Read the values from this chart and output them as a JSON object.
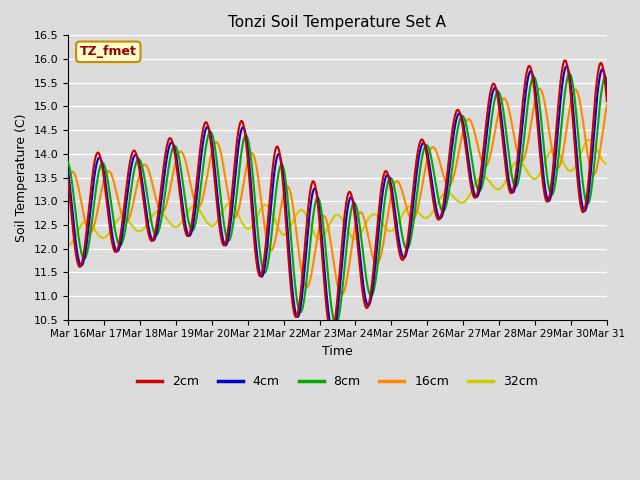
{
  "title": "Tonzi Soil Temperature Set A",
  "xlabel": "Time",
  "ylabel": "Soil Temperature (C)",
  "ylim": [
    10.5,
    16.5
  ],
  "xlim": [
    0,
    360
  ],
  "legend_label": "TZ_fmet",
  "series_labels": [
    "2cm",
    "4cm",
    "8cm",
    "16cm",
    "32cm"
  ],
  "series_colors": [
    "#cc0000",
    "#0000cc",
    "#00aa00",
    "#ff8800",
    "#cccc00"
  ],
  "line_widths": [
    1.5,
    1.5,
    1.5,
    1.5,
    1.5
  ],
  "x_tick_labels": [
    "Mar 16",
    "Mar 17",
    "Mar 18",
    "Mar 19",
    "Mar 20",
    "Mar 21",
    "Mar 22",
    "Mar 23",
    "Mar 24",
    "Mar 25",
    "Mar 26",
    "Mar 27",
    "Mar 28",
    "Mar 29",
    "Mar 30",
    "Mar 31"
  ],
  "background_color": "#dcdcdc",
  "plot_bg_color": "#dcdcdc",
  "grid_color": "#ffffff",
  "title_fontsize": 11,
  "axis_label_fontsize": 9,
  "tick_fontsize": 8
}
